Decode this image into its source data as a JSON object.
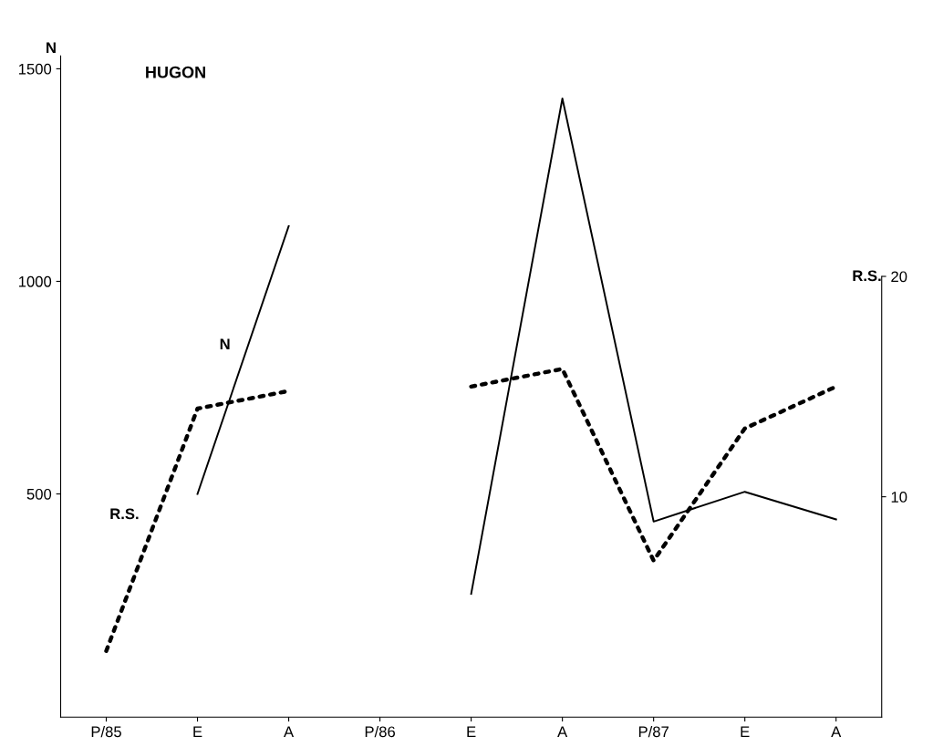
{
  "chart_data": {
    "type": "line",
    "title": "HUGON",
    "ylabel": "N",
    "y2label": "R.S.",
    "categories": [
      "P/85",
      "E",
      "A",
      "P/86",
      "E",
      "A",
      "P/87",
      "E",
      "A"
    ],
    "series": [
      {
        "name": "N",
        "color": "#000000",
        "line_style": "solid",
        "values": [
          null,
          500,
          1130,
          null,
          265,
          1430,
          435,
          505,
          440
        ]
      },
      {
        "name": "R.S.",
        "color": "#000000",
        "line_style": "dotted",
        "axis": "y2",
        "values": [
          3.0,
          14.0,
          14.8,
          null,
          15.0,
          15.8,
          7.1,
          13.1,
          15.0
        ]
      }
    ],
    "ylim": [
      -25,
      1530
    ],
    "yticks": [
      500,
      1000,
      1500
    ],
    "y2lim": [
      0,
      30
    ],
    "y2ticks": [
      10,
      20
    ],
    "grid": false,
    "legend": false,
    "marker": "none"
  }
}
